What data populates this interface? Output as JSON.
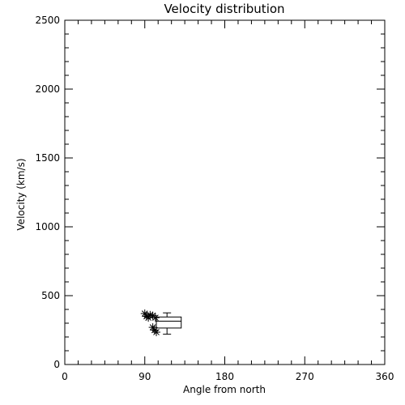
{
  "chart_data": {
    "type": "scatter",
    "title": "Velocity distribution",
    "xlabel": "Angle from north",
    "ylabel": "Velocity (km/s)",
    "xlim": [
      0,
      360
    ],
    "ylim": [
      0,
      2500
    ],
    "xticks": [
      0,
      90,
      180,
      270,
      360
    ],
    "xtick_labels": [
      "0",
      "90",
      "180",
      "270",
      "360"
    ],
    "yticks": [
      0,
      500,
      1000,
      1500,
      2000,
      2500
    ],
    "ytick_labels": [
      "0",
      "500",
      "1000",
      "1500",
      "2000",
      "2500"
    ],
    "grid": false,
    "points": [
      {
        "x": 90,
        "y": 370
      },
      {
        "x": 92,
        "y": 350
      },
      {
        "x": 94,
        "y": 340
      },
      {
        "x": 96,
        "y": 360
      },
      {
        "x": 99,
        "y": 355
      },
      {
        "x": 102,
        "y": 340
      },
      {
        "x": 99,
        "y": 270
      },
      {
        "x": 101,
        "y": 250
      },
      {
        "x": 103,
        "y": 235
      }
    ],
    "box": {
      "x_left": 103,
      "x_right": 131,
      "q1": 265,
      "median": 315,
      "q3": 345,
      "whisker_x": 115,
      "whisker_low": 220,
      "whisker_high": 375
    }
  }
}
